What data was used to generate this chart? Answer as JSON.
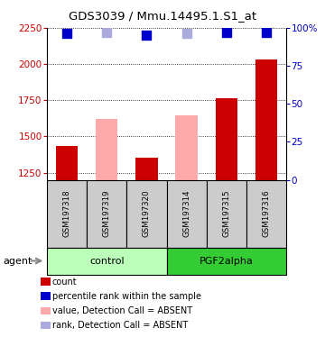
{
  "title": "GDS3039 / Mmu.14495.1.S1_at",
  "samples": [
    "GSM197318",
    "GSM197319",
    "GSM197320",
    "GSM197314",
    "GSM197315",
    "GSM197316"
  ],
  "count_values": [
    1435,
    null,
    1355,
    null,
    1762,
    2030
  ],
  "absent_value_values": [
    null,
    1620,
    null,
    1645,
    null,
    null
  ],
  "percentile_rank": [
    96,
    null,
    95,
    null,
    97,
    97
  ],
  "absent_rank_values": [
    null,
    97,
    null,
    96,
    null,
    null
  ],
  "ylim_left": [
    1200,
    2250
  ],
  "ylim_right": [
    0,
    100
  ],
  "yticks_left": [
    1250,
    1500,
    1750,
    2000,
    2250
  ],
  "yticks_right": [
    0,
    25,
    50,
    75,
    100
  ],
  "color_count": "#cc0000",
  "color_percentile": "#0000cc",
  "color_absent_value": "#ffaaaa",
  "color_absent_rank": "#aaaadd",
  "color_control_bg": "#bbffbb",
  "color_pgf2alpha_bg": "#33cc33",
  "color_sample_bg": "#cccccc",
  "bar_width": 0.55,
  "dot_size": 45
}
